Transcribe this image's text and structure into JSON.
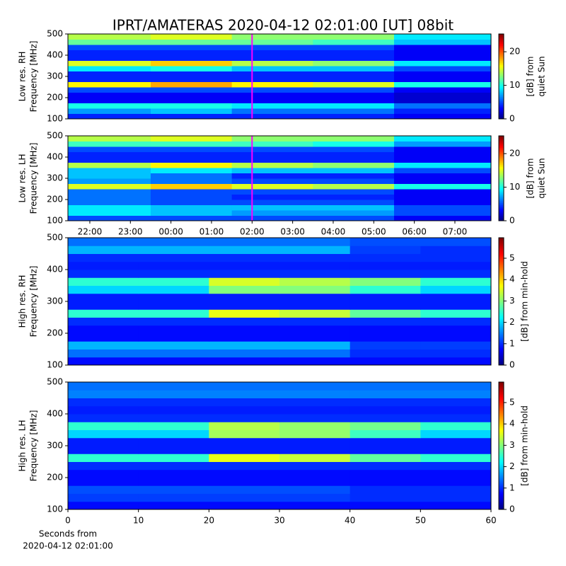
{
  "title": "IPRT/AMATERAS 2020-04-12 02:01:00 [UT]   08bit",
  "chart_data": [
    {
      "type": "heatmap",
      "ylabel": [
        "Low res. RH",
        "Frequency [MHz]"
      ],
      "clabel": [
        "[dB] from",
        "quiet Sun"
      ],
      "colormap": "jet",
      "xlim": [
        21.46,
        31.89
      ],
      "ylim": [
        100,
        500
      ],
      "yticks": [
        100,
        200,
        300,
        400,
        500
      ],
      "clim": [
        0,
        25.3
      ],
      "cticks": [
        0,
        10,
        20
      ],
      "cursor_x": 26.0,
      "cursor_color": "#ff00ff",
      "x_bins": [
        21.46,
        23.5,
        25.5,
        27.5,
        29.5,
        31.89
      ],
      "y_bins": [
        100,
        125,
        150,
        175,
        200,
        225,
        250,
        275,
        300,
        325,
        350,
        375,
        400,
        425,
        450,
        475,
        500
      ],
      "z": [
        [
          4,
          4,
          4,
          4,
          3
        ],
        [
          7,
          8,
          6,
          6,
          4
        ],
        [
          10,
          10,
          9,
          9,
          6
        ],
        [
          3,
          3,
          3,
          3,
          2
        ],
        [
          3,
          3,
          3,
          3,
          2
        ],
        [
          5,
          5,
          5,
          5,
          3
        ],
        [
          16,
          18,
          16,
          15,
          10
        ],
        [
          4,
          4,
          4,
          4,
          3
        ],
        [
          4,
          4,
          4,
          4,
          3
        ],
        [
          9,
          10,
          8,
          8,
          5
        ],
        [
          15,
          17,
          14,
          13,
          9
        ],
        [
          4,
          4,
          4,
          4,
          3
        ],
        [
          4,
          4,
          4,
          4,
          3
        ],
        [
          5,
          5,
          5,
          5,
          3
        ],
        [
          12,
          12,
          12,
          11,
          8
        ],
        [
          14,
          15,
          13,
          13,
          9
        ]
      ]
    },
    {
      "type": "heatmap",
      "ylabel": [
        "Low res. LH",
        "Frequency [MHz]"
      ],
      "clabel": [
        "[dB] from",
        "quiet Sun"
      ],
      "colormap": "jet",
      "xlim": [
        21.46,
        31.89
      ],
      "ylim": [
        100,
        500
      ],
      "yticks": [
        100,
        200,
        300,
        400,
        500
      ],
      "xticks": [
        {
          "value": 22,
          "label": "22:00"
        },
        {
          "value": 23,
          "label": "23:00"
        },
        {
          "value": 24,
          "label": "00:00"
        },
        {
          "value": 25,
          "label": "01:00"
        },
        {
          "value": 26,
          "label": "02:00"
        },
        {
          "value": 27,
          "label": "03:00"
        },
        {
          "value": 28,
          "label": "04:00"
        },
        {
          "value": 29,
          "label": "05:00"
        },
        {
          "value": 30,
          "label": "06:00"
        },
        {
          "value": 31,
          "label": "07:00"
        }
      ],
      "clim": [
        0,
        25.3
      ],
      "cticks": [
        0,
        10,
        20
      ],
      "cursor_x": 26.0,
      "cursor_color": "#ff00ff",
      "x_bins": [
        21.46,
        23.5,
        25.5,
        27.5,
        29.5,
        31.89
      ],
      "y_bins": [
        100,
        125,
        150,
        175,
        200,
        225,
        250,
        275,
        300,
        325,
        350,
        375,
        400,
        425,
        450,
        475,
        500
      ],
      "z": [
        [
          5,
          5,
          5,
          5,
          3
        ],
        [
          9,
          8,
          7,
          7,
          5
        ],
        [
          9,
          8,
          8,
          8,
          5
        ],
        [
          6,
          5,
          5,
          5,
          3
        ],
        [
          6,
          5,
          4,
          4,
          3
        ],
        [
          6,
          5,
          5,
          5,
          3
        ],
        [
          15,
          17,
          15,
          14,
          10
        ],
        [
          7,
          6,
          5,
          5,
          3
        ],
        [
          8,
          6,
          4,
          4,
          3
        ],
        [
          8,
          9,
          8,
          8,
          5
        ],
        [
          14,
          16,
          14,
          13,
          9
        ],
        [
          4,
          4,
          4,
          4,
          3
        ],
        [
          4,
          4,
          4,
          4,
          3
        ],
        [
          5,
          5,
          5,
          5,
          3
        ],
        [
          11,
          11,
          11,
          10,
          7
        ],
        [
          14,
          15,
          13,
          13,
          9
        ]
      ]
    },
    {
      "type": "heatmap",
      "ylabel": [
        "High res. RH",
        "Frequency [MHz]"
      ],
      "clabel": [
        "[dB] from min-hold"
      ],
      "colormap": "jet",
      "xlim": [
        0,
        60
      ],
      "ylim": [
        100,
        500
      ],
      "yticks": [
        100,
        200,
        300,
        400,
        500
      ],
      "clim": [
        0,
        5.96
      ],
      "cticks": [
        0,
        1,
        2,
        3,
        4,
        5
      ],
      "x_bins": [
        0,
        10,
        20,
        30,
        40,
        50,
        60
      ],
      "y_bins": [
        100,
        125,
        150,
        175,
        200,
        225,
        250,
        275,
        300,
        325,
        350,
        375,
        400,
        425,
        450,
        475,
        500
      ],
      "z": [
        [
          0.8,
          0.8,
          0.8,
          0.8,
          0.8,
          0.8
        ],
        [
          1.4,
          1.4,
          1.4,
          1.4,
          1,
          1
        ],
        [
          1.8,
          1.8,
          1.8,
          1.8,
          1.1,
          1.1
        ],
        [
          0.8,
          0.8,
          0.8,
          0.8,
          0.8,
          0.8
        ],
        [
          0.8,
          0.8,
          0.8,
          0.8,
          0.8,
          0.8
        ],
        [
          1,
          1,
          1,
          1,
          1,
          1
        ],
        [
          2.5,
          2.5,
          3.6,
          3.4,
          2.8,
          2.5
        ],
        [
          0.9,
          0.9,
          0.9,
          0.9,
          0.9,
          0.9
        ],
        [
          0.9,
          0.9,
          0.9,
          0.9,
          0.9,
          0.9
        ],
        [
          2,
          2,
          3,
          3,
          2.5,
          2
        ],
        [
          2.5,
          2.5,
          3.5,
          3.3,
          3,
          2.5
        ],
        [
          1,
          1,
          1,
          1,
          1,
          1
        ],
        [
          0.9,
          0.9,
          0.9,
          0.9,
          0.9,
          0.9
        ],
        [
          1,
          1,
          1,
          1,
          1,
          1
        ],
        [
          1.8,
          1.8,
          1.8,
          1.8,
          1.1,
          1
        ],
        [
          1.4,
          1.4,
          1.4,
          1.4,
          1.2,
          1.2
        ]
      ]
    },
    {
      "type": "heatmap",
      "ylabel": [
        "High res. LH",
        "Frequency [MHz]"
      ],
      "clabel": [
        "[dB] from min-hold"
      ],
      "colormap": "jet",
      "xlim": [
        0,
        60
      ],
      "ylim": [
        100,
        500
      ],
      "yticks": [
        100,
        200,
        300,
        400,
        500
      ],
      "xticks": [
        0,
        10,
        20,
        30,
        40,
        50,
        60
      ],
      "xlabel": [
        "Seconds from",
        "2020-04-12 02:01:00"
      ],
      "clim": [
        0,
        5.96
      ],
      "cticks": [
        0,
        1,
        2,
        3,
        4,
        5
      ],
      "x_bins": [
        0,
        10,
        20,
        30,
        40,
        50,
        60
      ],
      "y_bins": [
        100,
        125,
        150,
        175,
        200,
        225,
        250,
        275,
        300,
        325,
        350,
        375,
        400,
        425,
        450,
        475,
        500
      ],
      "z": [
        [
          0.8,
          0.8,
          0.8,
          0.8,
          0.8,
          0.8
        ],
        [
          1.1,
          1.1,
          1.1,
          1.1,
          1,
          1
        ],
        [
          1.2,
          1.2,
          1.2,
          1.2,
          1,
          1
        ],
        [
          0.8,
          0.8,
          0.8,
          0.8,
          0.8,
          0.8
        ],
        [
          0.8,
          0.8,
          0.8,
          0.8,
          0.8,
          0.8
        ],
        [
          1,
          1,
          1,
          1,
          1,
          1
        ],
        [
          2.5,
          2.5,
          3.6,
          3.4,
          2.8,
          2.5
        ],
        [
          0.9,
          0.9,
          0.9,
          0.9,
          0.9,
          0.9
        ],
        [
          0.9,
          0.9,
          0.9,
          0.9,
          0.9,
          0.9
        ],
        [
          2,
          2,
          3.2,
          3.1,
          2.6,
          2
        ],
        [
          2.5,
          2.5,
          3.3,
          3.1,
          2.9,
          2.5
        ],
        [
          1,
          1,
          1,
          1,
          1,
          1
        ],
        [
          0.9,
          0.9,
          0.9,
          0.9,
          0.9,
          0.9
        ],
        [
          1,
          1,
          1,
          1,
          1,
          1
        ],
        [
          1.5,
          1.5,
          1.5,
          1.5,
          1.5,
          1.5
        ],
        [
          1.4,
          1.4,
          1.4,
          1.4,
          1.4,
          1.4
        ]
      ]
    }
  ]
}
